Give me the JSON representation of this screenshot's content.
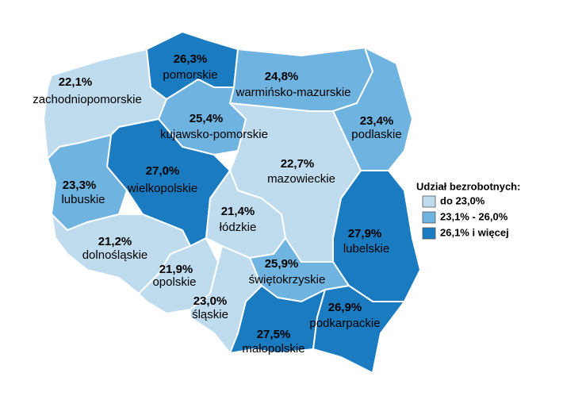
{
  "map": {
    "regions": [
      {
        "name": "zachodniopomorskie",
        "value": 22.1,
        "value_label": "22,1%",
        "color": "#bfdcef"
      },
      {
        "name": "pomorskie",
        "value": 26.3,
        "value_label": "26,3%",
        "color": "#1a7bc0"
      },
      {
        "name": "warmińsko-mazurskie",
        "value": 24.8,
        "value_label": "24,8%",
        "color": "#6fb3e0"
      },
      {
        "name": "podlaskie",
        "value": 23.4,
        "value_label": "23,4%",
        "color": "#6fb3e0"
      },
      {
        "name": "kujawsko-pomorskie",
        "value": 25.4,
        "value_label": "25,4%",
        "color": "#6fb3e0"
      },
      {
        "name": "wielkopolskie",
        "value": 27.0,
        "value_label": "27,0%",
        "color": "#1a7bc0"
      },
      {
        "name": "lubuskie",
        "value": 23.3,
        "value_label": "23,3%",
        "color": "#6fb3e0"
      },
      {
        "name": "mazowieckie",
        "value": 22.7,
        "value_label": "22,7%",
        "color": "#bfdcef"
      },
      {
        "name": "łódzkie",
        "value": 21.4,
        "value_label": "21,4%",
        "color": "#bfdcef"
      },
      {
        "name": "lubelskie",
        "value": 27.9,
        "value_label": "27,9%",
        "color": "#1a7bc0"
      },
      {
        "name": "dolnośląskie",
        "value": 21.2,
        "value_label": "21,2%",
        "color": "#bfdcef"
      },
      {
        "name": "opolskie",
        "value": 21.9,
        "value_label": "21,9%",
        "color": "#bfdcef"
      },
      {
        "name": "świętokrzyskie",
        "value": 25.9,
        "value_label": "25,9%",
        "color": "#6fb3e0"
      },
      {
        "name": "śląskie",
        "value": 23.0,
        "value_label": "23,0%",
        "color": "#bfdcef"
      },
      {
        "name": "małopolskie",
        "value": 27.5,
        "value_label": "27,5%",
        "color": "#1a7bc0"
      },
      {
        "name": "podkarpackie",
        "value": 26.9,
        "value_label": "26,9%",
        "color": "#1a7bc0"
      }
    ],
    "legend": {
      "title": "Udział bezrobotnych:",
      "items": [
        {
          "label": "do 23,0%",
          "color": "#bfdcef"
        },
        {
          "label": "23,1% - 26,0%",
          "color": "#6fb3e0"
        },
        {
          "label": "26,1% i więcej",
          "color": "#1a7bc0"
        }
      ]
    }
  }
}
